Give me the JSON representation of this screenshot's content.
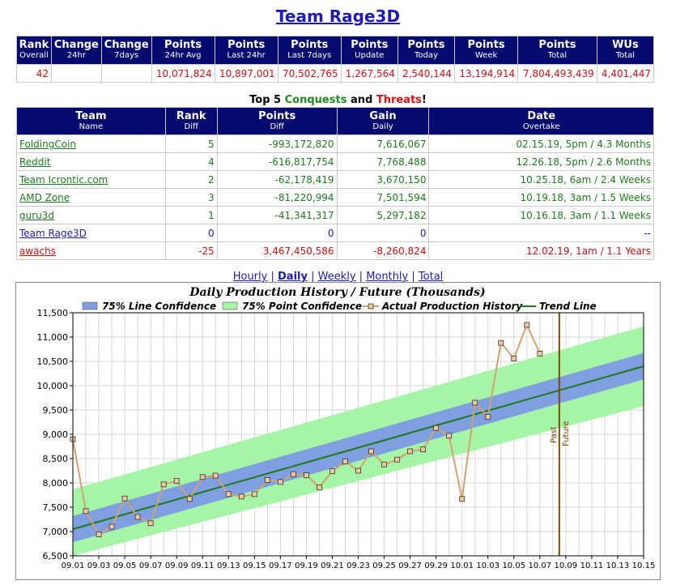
{
  "page": {
    "title": "Team Rage3D"
  },
  "stats": {
    "headers": [
      {
        "top": "Rank",
        "sub": "Overall"
      },
      {
        "top": "Change",
        "sub": "24hr"
      },
      {
        "top": "Change",
        "sub": "7days"
      },
      {
        "top": "Points",
        "sub": "24hr Avg"
      },
      {
        "top": "Points",
        "sub": "Last 24hr"
      },
      {
        "top": "Points",
        "sub": "Last 7days"
      },
      {
        "top": "Points",
        "sub": "Update"
      },
      {
        "top": "Points",
        "sub": "Today"
      },
      {
        "top": "Points",
        "sub": "Week"
      },
      {
        "top": "Points",
        "sub": "Total"
      },
      {
        "top": "WUs",
        "sub": "Total"
      }
    ],
    "values": [
      "42",
      "",
      "",
      "10,071,824",
      "10,897,001",
      "70,502,765",
      "1,267,564",
      "2,540,144",
      "13,194,914",
      "7,804,493,439",
      "4,401,447"
    ]
  },
  "top5": {
    "prefix": "Top 5 ",
    "conquests": "Conquests",
    "and": " and ",
    "threats": "Threats",
    "suffix": "!"
  },
  "threats": {
    "headers": [
      {
        "top": "Team",
        "sub": "Name"
      },
      {
        "top": "Rank",
        "sub": "Diff"
      },
      {
        "top": "Points",
        "sub": "Diff"
      },
      {
        "top": "Gain",
        "sub": "Daily"
      },
      {
        "top": "Date",
        "sub": "Overtake"
      }
    ],
    "rows": [
      {
        "name": "FoldingCoin",
        "rank": "5",
        "points": "-993,172,820",
        "gain": "7,616,067",
        "date": "02.15.19, 5pm / 4.3 Months",
        "kind": "green"
      },
      {
        "name": "Reddit",
        "rank": "4",
        "points": "-616,817,754",
        "gain": "7,768,488",
        "date": "12.26.18, 5pm / 2.6 Months",
        "kind": "green"
      },
      {
        "name": "Team Icrontic.com",
        "rank": "2",
        "points": "-62,178,419",
        "gain": "3,670,150",
        "date": "10.25.18, 6am / 2.4 Weeks",
        "kind": "green"
      },
      {
        "name": "AMD Zone",
        "rank": "3",
        "points": "-81,220,994",
        "gain": "7,501,594",
        "date": "10.19.18, 3am / 1.5 Weeks",
        "kind": "green"
      },
      {
        "name": "guru3d",
        "rank": "1",
        "points": "-41,341,317",
        "gain": "5,297,182",
        "date": "10.16.18, 3am / 1.1 Weeks",
        "kind": "green"
      },
      {
        "name": "Team Rage3D",
        "rank": "0",
        "points": "0",
        "gain": "0",
        "date": "--",
        "kind": "self"
      },
      {
        "name": "awachs",
        "rank": "-25",
        "points": "3,467,450,586",
        "gain": "-8,260,824",
        "date": "12.02.19, 1am / 1.1 Years",
        "kind": "red"
      }
    ]
  },
  "nav": {
    "hourly": "Hourly",
    "daily": "Daily",
    "weekly": "Weekly",
    "monthly": "Monthly",
    "total": "Total",
    "sep": " | "
  },
  "chart_data": {
    "type": "line",
    "title": "Daily Production History / Future (Thousands)",
    "legend": [
      "75% Line Confidence",
      "75% Point Confidence",
      "Actual Production History",
      "Trend Line"
    ],
    "legend_placement": "top",
    "colors": {
      "line_conf": "#7f9fe0",
      "point_conf": "#a6f5a6",
      "history": "#d2a26e",
      "trend": "#1a7a1a",
      "divider": "#7a4a00"
    },
    "ylim": [
      6500,
      11500
    ],
    "yticks": [
      "6,500",
      "7,000",
      "7,500",
      "8,000",
      "8,500",
      "9,000",
      "9,500",
      "10,000",
      "10,500",
      "11,000",
      "11,500"
    ],
    "xticks": [
      "09.01",
      "09.03",
      "09.05",
      "09.07",
      "09.09",
      "09.11",
      "09.13",
      "09.15",
      "09.17",
      "09.19",
      "09.21",
      "09.23",
      "09.25",
      "09.27",
      "09.29",
      "10.01",
      "10.03",
      "10.05",
      "10.07",
      "10.09",
      "10.11",
      "10.13",
      "10.15"
    ],
    "x_start": "09.01",
    "x_end": "10.15",
    "past_label": "Past",
    "future_label": "Future",
    "past_future_day": 37.5,
    "history": [
      {
        "day": 0,
        "value": 8900
      },
      {
        "day": 1,
        "value": 7420
      },
      {
        "day": 2,
        "value": 6940
      },
      {
        "day": 3,
        "value": 7100
      },
      {
        "day": 4,
        "value": 7680
      },
      {
        "day": 5,
        "value": 7300
      },
      {
        "day": 6,
        "value": 7170
      },
      {
        "day": 7,
        "value": 7970
      },
      {
        "day": 8,
        "value": 8040
      },
      {
        "day": 9,
        "value": 7670
      },
      {
        "day": 10,
        "value": 8120
      },
      {
        "day": 11,
        "value": 8150
      },
      {
        "day": 12,
        "value": 7770
      },
      {
        "day": 13,
        "value": 7720
      },
      {
        "day": 14,
        "value": 7770
      },
      {
        "day": 15,
        "value": 8060
      },
      {
        "day": 16,
        "value": 8020
      },
      {
        "day": 17,
        "value": 8180
      },
      {
        "day": 18,
        "value": 8160
      },
      {
        "day": 19,
        "value": 7910
      },
      {
        "day": 20,
        "value": 8240
      },
      {
        "day": 21,
        "value": 8440
      },
      {
        "day": 22,
        "value": 8250
      },
      {
        "day": 23,
        "value": 8650
      },
      {
        "day": 24,
        "value": 8380
      },
      {
        "day": 25,
        "value": 8480
      },
      {
        "day": 26,
        "value": 8650
      },
      {
        "day": 27,
        "value": 8690
      },
      {
        "day": 28,
        "value": 9130
      },
      {
        "day": 29,
        "value": 8970
      },
      {
        "day": 30,
        "value": 7670
      },
      {
        "day": 31,
        "value": 9650
      },
      {
        "day": 32,
        "value": 9360
      },
      {
        "day": 33,
        "value": 10880
      },
      {
        "day": 34,
        "value": 10560
      },
      {
        "day": 35,
        "value": 11250
      },
      {
        "day": 36,
        "value": 10660
      }
    ],
    "trend": {
      "start_day": 0,
      "start_value": 7050,
      "end_day": 44,
      "end_value": 10400
    },
    "line_conf_halfwidth": 270,
    "point_conf_halfwidth": 820
  }
}
